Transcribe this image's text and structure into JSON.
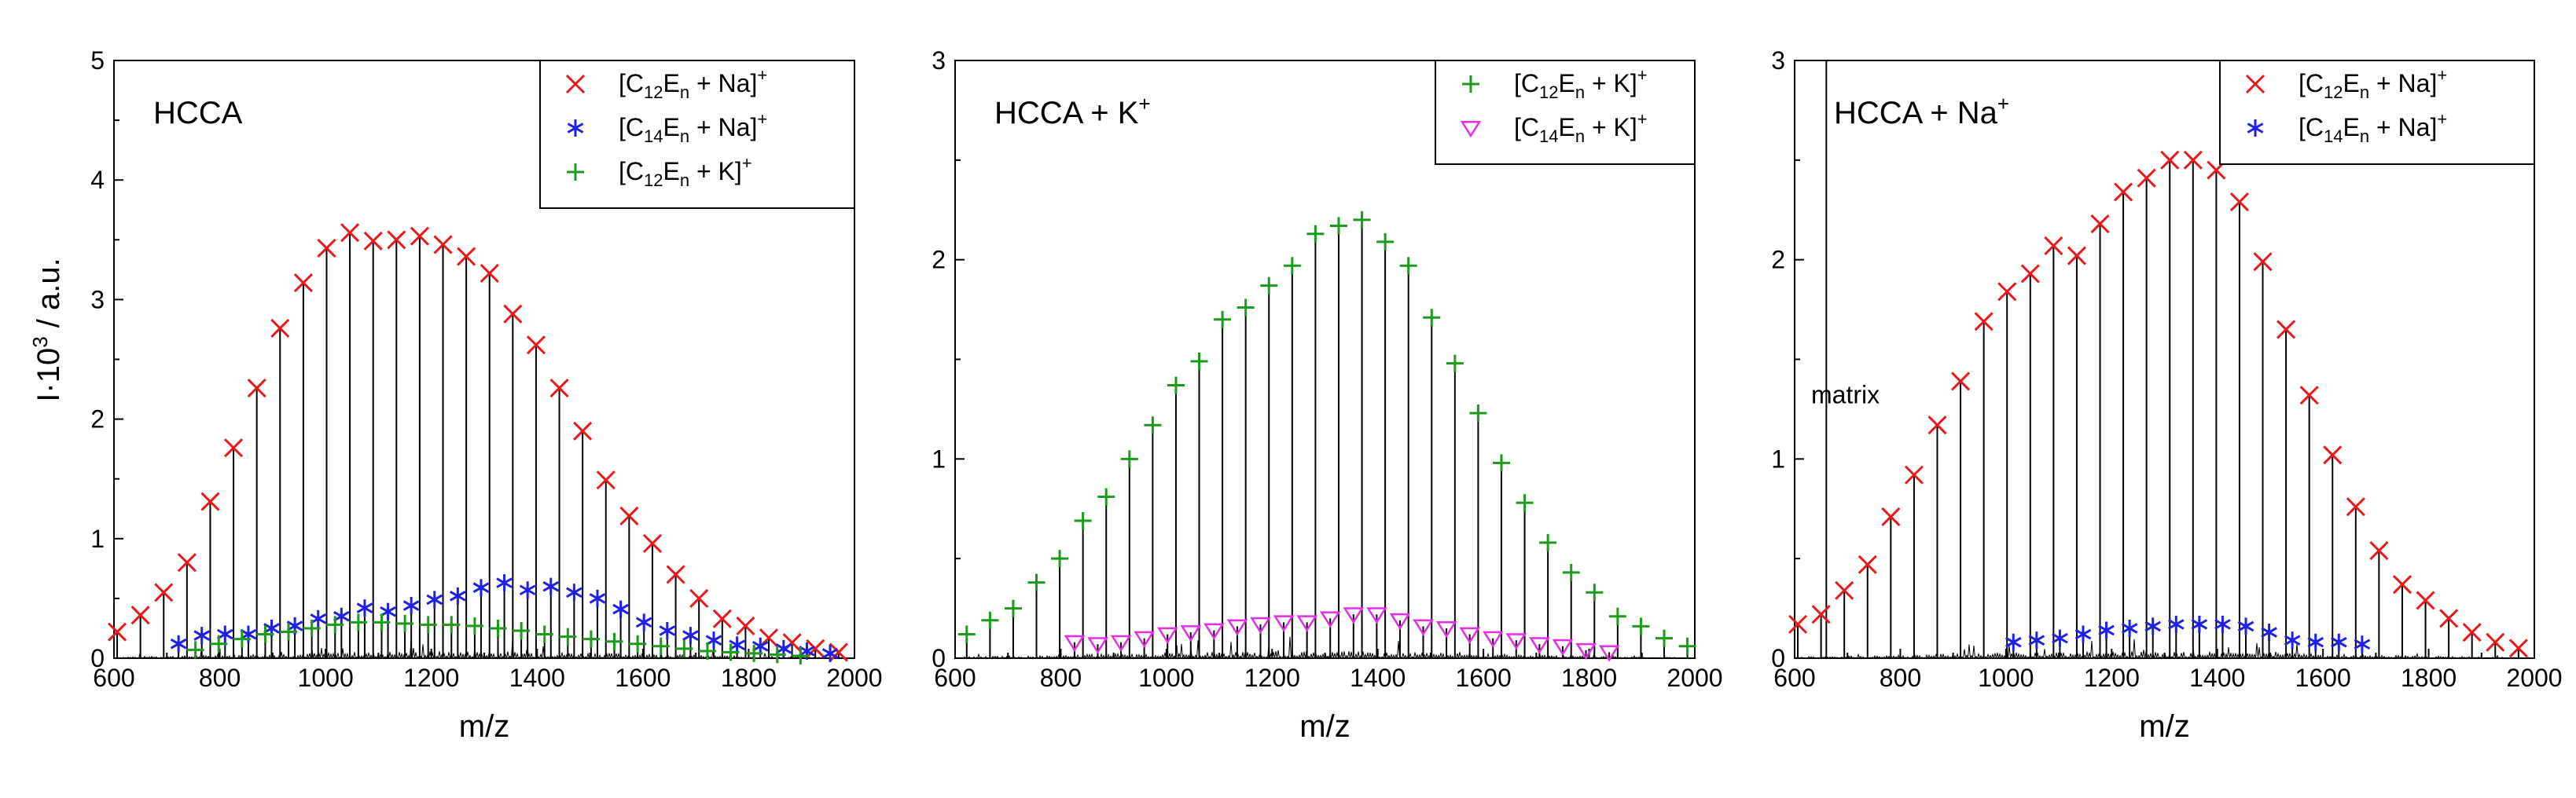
{
  "figure": {
    "ylabel": "I·10",
    "ylabel_sup": "3",
    "ylabel_tail": " / a.u."
  },
  "chart_data": [
    {
      "type": "scatter",
      "panel_label": "HCCA",
      "panel_label_sup": "",
      "xlabel": "m/z",
      "xlim": [
        600,
        2000
      ],
      "ylim": [
        0,
        5
      ],
      "xticks": [
        600,
        800,
        1000,
        1200,
        1400,
        1600,
        1800,
        2000
      ],
      "yticks": [
        0,
        1,
        2,
        3,
        4,
        5
      ],
      "annotations": [],
      "legend": {
        "placement": "top-right"
      },
      "series": [
        {
          "name": "[C12En + Na]+",
          "label": {
            "base": "[C",
            "sub1": "12",
            "mid": "E",
            "sub2": "n",
            "tail": " + Na]",
            "sup": "+"
          },
          "marker": "x",
          "color": "#e8191b",
          "x": [
            606,
            650,
            694,
            738,
            782,
            826,
            870,
            914,
            958,
            1002,
            1046,
            1090,
            1134,
            1178,
            1222,
            1266,
            1310,
            1354,
            1398,
            1442,
            1486,
            1530,
            1574,
            1618,
            1662,
            1706,
            1750,
            1794,
            1838,
            1882,
            1926,
            1970
          ],
          "y": [
            0.22,
            0.36,
            0.55,
            0.8,
            1.31,
            1.76,
            2.26,
            2.76,
            3.14,
            3.43,
            3.56,
            3.49,
            3.5,
            3.53,
            3.46,
            3.36,
            3.22,
            2.88,
            2.62,
            2.26,
            1.9,
            1.49,
            1.19,
            0.96,
            0.7,
            0.5,
            0.33,
            0.27,
            0.17,
            0.13,
            0.08,
            0.05
          ]
        },
        {
          "name": "[C14En + Na]+",
          "label": {
            "base": "[C",
            "sub1": "14",
            "mid": "E",
            "sub2": "n",
            "tail": " + Na]",
            "sup": "+"
          },
          "marker": "asterisk",
          "color": "#1f1fe6",
          "x": [
            722,
            766,
            810,
            854,
            898,
            942,
            986,
            1030,
            1074,
            1118,
            1162,
            1206,
            1250,
            1294,
            1338,
            1382,
            1426,
            1470,
            1514,
            1558,
            1602,
            1646,
            1690,
            1734,
            1778,
            1822,
            1866,
            1910,
            1954
          ],
          "y": [
            0.12,
            0.19,
            0.2,
            0.2,
            0.25,
            0.27,
            0.33,
            0.35,
            0.42,
            0.39,
            0.44,
            0.49,
            0.52,
            0.59,
            0.63,
            0.57,
            0.6,
            0.55,
            0.5,
            0.41,
            0.3,
            0.23,
            0.19,
            0.15,
            0.11,
            0.1,
            0.08,
            0.06,
            0.04
          ]
        },
        {
          "name": "[C12En + K]+",
          "label": {
            "base": "[C",
            "sub1": "12",
            "mid": "E",
            "sub2": "n",
            "tail": " + K]",
            "sup": "+"
          },
          "marker": "plus",
          "color": "#1c9a1c",
          "x": [
            754,
            798,
            842,
            886,
            930,
            974,
            1018,
            1062,
            1106,
            1150,
            1194,
            1238,
            1282,
            1326,
            1370,
            1414,
            1458,
            1502,
            1546,
            1590,
            1634,
            1678,
            1722,
            1766,
            1810,
            1854,
            1898
          ],
          "y": [
            0.07,
            0.12,
            0.16,
            0.2,
            0.22,
            0.25,
            0.28,
            0.3,
            0.3,
            0.29,
            0.28,
            0.28,
            0.27,
            0.25,
            0.23,
            0.2,
            0.18,
            0.16,
            0.14,
            0.12,
            0.1,
            0.08,
            0.06,
            0.05,
            0.04,
            0.03,
            0.02
          ]
        }
      ]
    },
    {
      "type": "scatter",
      "panel_label": "HCCA + K",
      "panel_label_sup": "+",
      "xlabel": "m/z",
      "xlim": [
        600,
        2000
      ],
      "ylim": [
        0,
        3
      ],
      "xticks": [
        600,
        800,
        1000,
        1200,
        1400,
        1600,
        1800,
        2000
      ],
      "yticks": [
        0,
        1,
        2,
        3
      ],
      "annotations": [],
      "legend": {
        "placement": "top-right"
      },
      "series": [
        {
          "name": "[C12En + K]+",
          "label": {
            "base": "[C",
            "sub1": "12",
            "mid": "E",
            "sub2": "n",
            "tail": " + K]",
            "sup": "+"
          },
          "marker": "plus",
          "color": "#1c9a1c",
          "x": [
            622,
            666,
            710,
            754,
            798,
            842,
            886,
            930,
            974,
            1018,
            1062,
            1106,
            1150,
            1194,
            1238,
            1282,
            1326,
            1370,
            1414,
            1458,
            1502,
            1546,
            1590,
            1634,
            1678,
            1722,
            1766,
            1810,
            1854,
            1898,
            1942,
            1986
          ],
          "y": [
            0.12,
            0.19,
            0.25,
            0.38,
            0.5,
            0.69,
            0.81,
            1.0,
            1.17,
            1.37,
            1.49,
            1.7,
            1.76,
            1.87,
            1.97,
            2.13,
            2.17,
            2.2,
            2.09,
            1.97,
            1.71,
            1.48,
            1.23,
            0.98,
            0.78,
            0.58,
            0.43,
            0.33,
            0.21,
            0.16,
            0.1,
            0.06
          ]
        },
        {
          "name": "[C14En + K]+",
          "label": {
            "base": "[C",
            "sub1": "14",
            "mid": "E",
            "sub2": "n",
            "tail": " + K]",
            "sup": "+"
          },
          "marker": "triangle-down",
          "color": "#e62de6",
          "x": [
            826,
            870,
            914,
            958,
            1002,
            1046,
            1090,
            1134,
            1178,
            1222,
            1266,
            1310,
            1354,
            1398,
            1442,
            1486,
            1530,
            1574,
            1618,
            1662,
            1706,
            1750,
            1794,
            1838
          ],
          "y": [
            0.08,
            0.07,
            0.08,
            0.1,
            0.12,
            0.13,
            0.14,
            0.16,
            0.17,
            0.18,
            0.18,
            0.2,
            0.22,
            0.22,
            0.19,
            0.16,
            0.15,
            0.12,
            0.1,
            0.09,
            0.07,
            0.06,
            0.04,
            0.03
          ]
        }
      ]
    },
    {
      "type": "scatter",
      "panel_label": "HCCA + Na",
      "panel_label_sup": "+",
      "xlabel": "m/z",
      "xlim": [
        600,
        2000
      ],
      "ylim": [
        0,
        3
      ],
      "xticks": [
        600,
        800,
        1000,
        1200,
        1400,
        1600,
        1800,
        2000
      ],
      "yticks": [
        0,
        1,
        2,
        3
      ],
      "annotations": [
        {
          "text": "matrix",
          "x": 696,
          "y": 1.28
        }
      ],
      "legend": {
        "placement": "top-right"
      },
      "series": [
        {
          "name": "[C12En + Na]+",
          "label": {
            "base": "[C",
            "sub1": "12",
            "mid": "E",
            "sub2": "n",
            "tail": " + Na]",
            "sup": "+"
          },
          "marker": "x",
          "color": "#e8191b",
          "x": [
            606,
            650,
            694,
            738,
            782,
            826,
            870,
            914,
            958,
            1002,
            1046,
            1090,
            1134,
            1178,
            1222,
            1266,
            1310,
            1354,
            1398,
            1442,
            1486,
            1530,
            1574,
            1618,
            1662,
            1706,
            1750,
            1794,
            1838,
            1882,
            1926,
            1970
          ],
          "y": [
            0.17,
            0.22,
            0.34,
            0.47,
            0.71,
            0.92,
            1.17,
            1.39,
            1.69,
            1.84,
            1.93,
            2.07,
            2.02,
            2.18,
            2.34,
            2.41,
            2.5,
            2.5,
            2.45,
            2.29,
            1.99,
            1.65,
            1.32,
            1.02,
            0.76,
            0.54,
            0.37,
            0.29,
            0.2,
            0.13,
            0.08,
            0.05
          ]
        },
        {
          "name": "[C14En + Na]+",
          "label": {
            "base": "[C",
            "sub1": "14",
            "mid": "E",
            "sub2": "n",
            "tail": " + Na]",
            "sup": "+"
          },
          "marker": "asterisk",
          "color": "#1f1fe6",
          "x": [
            1014,
            1058,
            1102,
            1146,
            1190,
            1234,
            1278,
            1322,
            1366,
            1410,
            1454,
            1498,
            1542,
            1586,
            1630,
            1674
          ],
          "y": [
            0.08,
            0.09,
            0.1,
            0.12,
            0.14,
            0.15,
            0.16,
            0.17,
            0.17,
            0.17,
            0.16,
            0.13,
            0.09,
            0.08,
            0.08,
            0.07
          ]
        }
      ]
    }
  ]
}
